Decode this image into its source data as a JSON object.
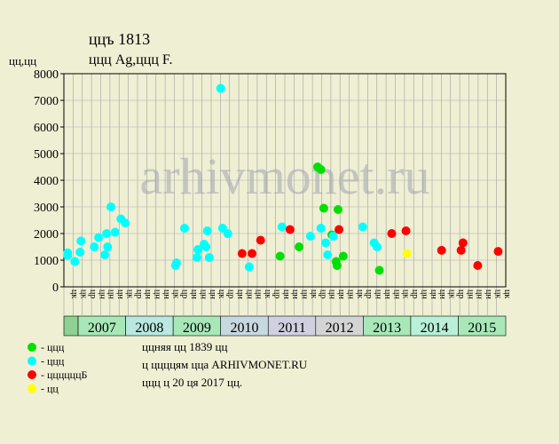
{
  "chart_data": {
    "type": "scatter",
    "title": "ццъ 1813",
    "subtitle": "ццц Ag,ццц F.",
    "y_label": "цц,цц",
    "watermark": "arhivmonet.ru",
    "xlim": [
      2006.7,
      2016
    ],
    "ylim": [
      0,
      8000
    ],
    "yticks": [
      0,
      1000,
      2000,
      3000,
      4000,
      5000,
      6000,
      7000,
      8000
    ],
    "grid": true,
    "years": [
      "2007",
      "2008",
      "2009",
      "2010",
      "2011",
      "2012",
      "2013",
      "2014",
      "2015"
    ],
    "year_colors": [
      "#a8e8b8",
      "#b8e8e0",
      "#a8e8b8",
      "#c8d8e0",
      "#d0d0e0",
      "#d4d4d4",
      "#a8e8b8",
      "#b8f0d8",
      "#a8e8b8"
    ],
    "column_labels": [
      "цк",
      "цк",
      "цр",
      "цн",
      "цн",
      "цн",
      "цк",
      "цр",
      "цн",
      "цн",
      "цн",
      "цк",
      "цр",
      "цн",
      "цн",
      "цн",
      "цк",
      "цр",
      "цн",
      "цн",
      "цн",
      "цк",
      "цр",
      "цн",
      "цн",
      "цн",
      "цк",
      "цр",
      "цн",
      "цн",
      "цн",
      "цк",
      "цр",
      "цн",
      "цн",
      "цн",
      "цк",
      "цр",
      "цн",
      "цн",
      "цн",
      "цк",
      "цр",
      "цн",
      "цн",
      "цн",
      "цк",
      "цк"
    ],
    "series": [
      {
        "name": "- ццц",
        "color": "#00e000",
        "x": [
          2011.25,
          2011.65,
          2012.04,
          2012.11,
          2012.17,
          2012.34,
          2012.43,
          2012.45,
          2012.47,
          2012.58,
          2013.34
        ],
        "values": [
          1150,
          1500,
          4500,
          4400,
          2950,
          1950,
          950,
          800,
          2900,
          1150,
          620
        ]
      },
      {
        "name": "- ццц",
        "color": "#00ffff",
        "x": [
          2006.78,
          2006.78,
          2006.93,
          2007.06,
          2007.04,
          2007.34,
          2007.43,
          2007.56,
          2007.62,
          2007.6,
          2007.69,
          2007.78,
          2007.9,
          2007.99,
          2009.05,
          2009.07,
          2009.24,
          2009.52,
          2009.5,
          2009.65,
          2009.69,
          2009.72,
          2009.76,
          2010.0,
          2010.04,
          2010.15,
          2010.6,
          2011.29,
          2011.89,
          2012.11,
          2012.21,
          2012.25,
          2012.37,
          2012.99,
          2013.23,
          2013.29
        ],
        "values": [
          1280,
          1180,
          950,
          1720,
          1300,
          1500,
          1850,
          1200,
          1500,
          2000,
          3000,
          2050,
          2550,
          2400,
          800,
          900,
          2200,
          1400,
          1100,
          1600,
          1500,
          2100,
          1100,
          7450,
          2200,
          2000,
          750,
          2250,
          1900,
          2200,
          1650,
          1200,
          1900,
          2250,
          1650,
          1500
        ]
      },
      {
        "name": "- ццццццБ",
        "color": "#ff0000",
        "x": [
          2010.45,
          2010.66,
          2010.84,
          2011.46,
          2012.49,
          2013.6,
          2013.9,
          2014.65,
          2015.06,
          2015.1,
          2015.41,
          2015.84
        ],
        "values": [
          1250,
          1250,
          1750,
          2150,
          2150,
          2000,
          2100,
          1370,
          1370,
          1650,
          800,
          1330
        ]
      },
      {
        "name": "- цц",
        "color": "#ffff00",
        "x": [
          2013.92
        ],
        "values": [
          1250
        ]
      }
    ],
    "notes": [
      "ццняя цц 1839 цц",
      "ц ццццям цца ARHIVMONET.RU",
      "ццц ц 20 ця 2017 цц."
    ]
  }
}
